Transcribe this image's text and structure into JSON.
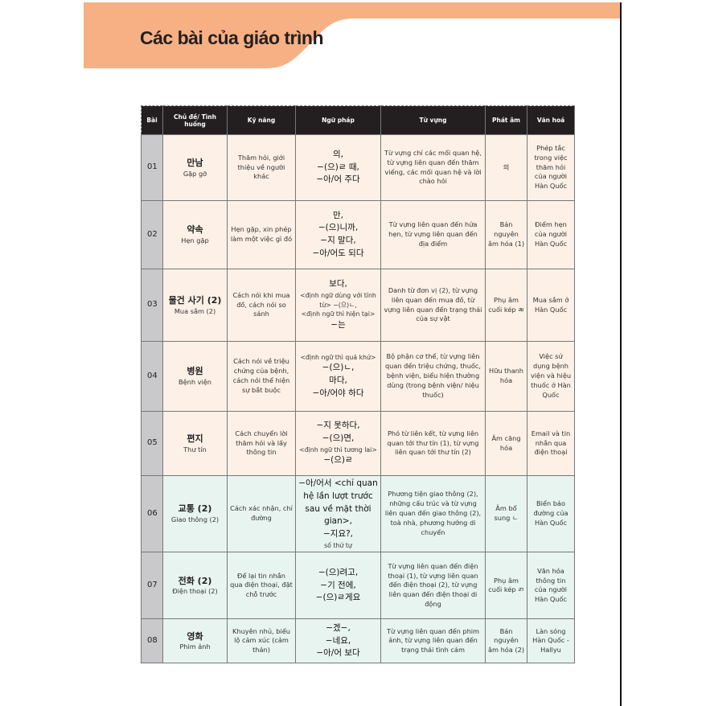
{
  "title": "Các bài của giáo trình",
  "colors": {
    "band": "#f6b083",
    "header_bg": "#231f20",
    "row_peach": "#fdf1e7",
    "row_mint": "#e8f4ef",
    "num_col": "#c9c9cb"
  },
  "table": {
    "headers": [
      "Bài",
      "Chủ đề/ Tình huống",
      "Kỹ năng",
      "Ngữ pháp",
      "Từ vựng",
      "Phát âm",
      "Văn hoá"
    ],
    "rows": [
      {
        "no": "01",
        "topic_ko": "만남",
        "topic_vi": "Gặp gỡ",
        "skill": "Thăm hỏi, giới thiệu về người khác",
        "grammar": [
          "의,",
          "−(으)ㄹ 때,",
          "−아/어 주다"
        ],
        "vocab": "Từ vựng chỉ các mối quan hệ, từ vựng liên quan đến thăm viếng, các mối quan hệ và lời chào hỏi",
        "pron": "의",
        "culture": "Phép tắc trong việc thăm hỏi của người Hàn Quốc"
      },
      {
        "no": "02",
        "topic_ko": "약속",
        "topic_vi": "Hẹn gặp",
        "skill": "Hẹn gặp, xin phép làm một việc gì đó",
        "grammar": [
          "만,",
          "−(으)니까,",
          "−지 말다,",
          "−아/어도 되다"
        ],
        "vocab": "Từ vựng liên quan đến hứa hẹn, từ vựng liên quan đến địa điểm",
        "pron": "Bán nguyên âm hóa (1)",
        "culture": "Điểm hẹn của người Hàn Quốc"
      },
      {
        "no": "03",
        "topic_ko": "물건 사기 (2)",
        "topic_vi": "Mua sắm (2)",
        "skill": "Cách nói khi mua đồ, cách nói so sánh",
        "grammar": [
          "보다,",
          "<định ngữ dùng với tính từ> −(으)ㄴ,",
          "<định ngữ thì hiện tại>",
          "−는"
        ],
        "vocab": "Danh từ đơn vị (2), từ vựng liên quan đến mua đồ, từ vựng liên quan đến trạng thái của sự vật",
        "pron": "Phụ âm cuối kép ㄼ",
        "culture": "Mua sắm ở Hàn Quốc"
      },
      {
        "no": "04",
        "topic_ko": "병원",
        "topic_vi": "Bệnh viện",
        "skill": "Cách nói về triệu chứng của bệnh, cách nói thể hiện sự bắt buộc",
        "grammar": [
          "<định ngữ thì quá khứ>",
          "−(으)ㄴ,",
          "마다,",
          "−아/어야 하다"
        ],
        "vocab": "Bộ phận cơ thể, từ vựng liên quan đến triệu chứng, thuốc, bệnh viện, biểu hiện thường dùng (trong bệnh viện/ hiệu thuốc)",
        "pron": "Hữu thanh hóa",
        "culture": "Việc sử dụng bệnh viện và hiệu thuốc ở Hàn Quốc"
      },
      {
        "no": "05",
        "topic_ko": "편지",
        "topic_vi": "Thư tín",
        "skill": "Cách chuyển lời thăm hỏi và lấy thông tin",
        "grammar": [
          "−지 못하다,",
          "−(으)면,",
          "<định ngữ thì tương lai>",
          "−(으)ㄹ"
        ],
        "vocab": "Phó từ liên kết, từ vựng liên quan tới thư tín (1), từ vựng liên quan tới thư tín (2)",
        "pron": "Âm căng hóa",
        "culture": "Email và tin nhắn qua điện thoại"
      },
      {
        "no": "06",
        "topic_ko": "교통 (2)",
        "topic_vi": "Giao thông (2)",
        "skill": "Cách xác nhận, chỉ đường",
        "grammar": [
          "−아/어서 <chỉ quan hệ lần lượt trước sau về mặt thời gian>,",
          "−지요?,",
          "số thứ tự"
        ],
        "vocab": "Phương tiện giao thông (2), những cấu trúc và từ vựng liên quan đến giao thông (2), toà nhà, phương hướng di chuyển",
        "pron": "Âm bổ sung ㄴ",
        "culture": "Biển báo đường của Hàn Quốc"
      },
      {
        "no": "07",
        "topic_ko": "전화 (2)",
        "topic_vi": "Điện thoại (2)",
        "skill": "Để lại tin nhắn qua điện thoại, đặt chỗ trước",
        "grammar": [
          "−(으)려고,",
          "−기 전에,",
          "−(으)ㄹ게요"
        ],
        "vocab": "Từ vựng liên quan đến điện thoại (1), từ vựng liên quan đến điện thoại (2), từ vựng liên quan đến điện thoại di động",
        "pron": "Phụ âm cuối kép ㄺ",
        "culture": "Văn hóa thông tin của người Hàn Quốc"
      },
      {
        "no": "08",
        "topic_ko": "영화",
        "topic_vi": "Phim ảnh",
        "skill": "Khuyên nhủ, biểu lộ cảm xúc (cảm thán)",
        "grammar": [
          "−겠−,",
          "−네요,",
          "−아/어 보다"
        ],
        "vocab": "Từ vựng liên quan đến phim ảnh, từ vựng liên quan đến trạng thái tình cảm",
        "pron": "Bán nguyên âm hóa (2)",
        "culture": "Làn sóng Hàn Quốc - Hallyu"
      }
    ]
  }
}
